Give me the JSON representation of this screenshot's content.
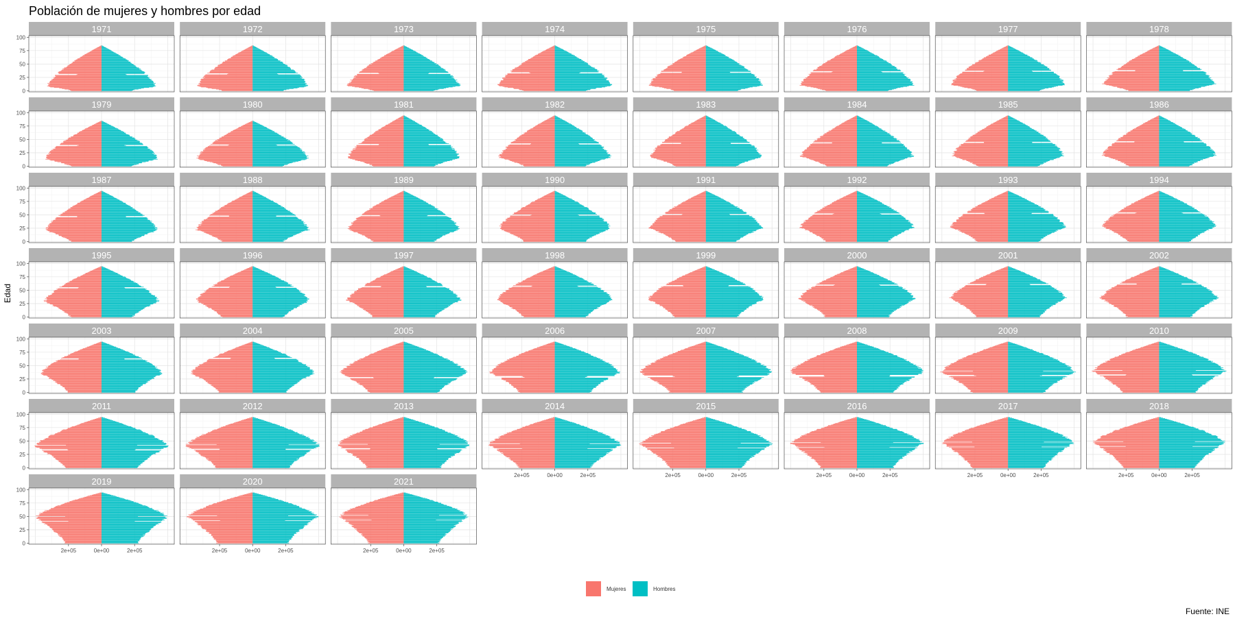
{
  "chart_data": {
    "type": "bar",
    "subtype": "population-pyramid-faceted",
    "title": "Población de mujeres y hombres por edad",
    "ylabel": "Edad",
    "xlabel": "",
    "caption": "Fuente: INE",
    "y_ticks": [
      0,
      25,
      50,
      75,
      100
    ],
    "x_ticks": [
      {
        "value": -200000,
        "label": "2e+05"
      },
      {
        "value": 0,
        "label": "0e+00"
      },
      {
        "value": 200000,
        "label": "2e+05"
      }
    ],
    "xlim": [
      -440000,
      440000
    ],
    "ylim": [
      -2,
      103
    ],
    "grid": true,
    "legend": {
      "position": "bottom",
      "entries": [
        {
          "name": "Mujeres",
          "color": "#F8766D"
        },
        {
          "name": "Hombres",
          "color": "#00BFC4"
        }
      ]
    },
    "strip_color": "#b3b3b3",
    "panels": [
      {
        "year": "1971",
        "max_age": 85,
        "peak_m": 330000,
        "peak_age": 8,
        "gaps": [
          30,
          31
        ]
      },
      {
        "year": "1972",
        "max_age": 85,
        "peak_m": 335000,
        "peak_age": 8,
        "gaps": [
          31,
          32
        ]
      },
      {
        "year": "1973",
        "max_age": 85,
        "peak_m": 340000,
        "peak_age": 9,
        "gaps": [
          32,
          33
        ]
      },
      {
        "year": "1974",
        "max_age": 85,
        "peak_m": 345000,
        "peak_age": 9,
        "gaps": [
          33,
          34
        ]
      },
      {
        "year": "1975",
        "max_age": 85,
        "peak_m": 345000,
        "peak_age": 10,
        "gaps": [
          34,
          35
        ]
      },
      {
        "year": "1976",
        "max_age": 85,
        "peak_m": 345000,
        "peak_age": 10,
        "gaps": [
          35,
          36
        ]
      },
      {
        "year": "1977",
        "max_age": 85,
        "peak_m": 345000,
        "peak_age": 11,
        "gaps": [
          36,
          37
        ]
      },
      {
        "year": "1978",
        "max_age": 85,
        "peak_m": 340000,
        "peak_age": 12,
        "gaps": [
          37,
          38
        ]
      },
      {
        "year": "1979",
        "max_age": 85,
        "peak_m": 340000,
        "peak_age": 13,
        "gaps": [
          38,
          39
        ]
      },
      {
        "year": "1980",
        "max_age": 85,
        "peak_m": 340000,
        "peak_age": 14,
        "gaps": [
          39,
          40
        ]
      },
      {
        "year": "1981",
        "max_age": 95,
        "peak_m": 340000,
        "peak_age": 15,
        "gaps": [
          40,
          41
        ]
      },
      {
        "year": "1982",
        "max_age": 95,
        "peak_m": 340000,
        "peak_age": 16,
        "gaps": [
          41,
          42
        ]
      },
      {
        "year": "1983",
        "max_age": 95,
        "peak_m": 340000,
        "peak_age": 17,
        "gaps": [
          42,
          43
        ]
      },
      {
        "year": "1984",
        "max_age": 95,
        "peak_m": 340000,
        "peak_age": 18,
        "gaps": [
          43,
          44
        ]
      },
      {
        "year": "1985",
        "max_age": 95,
        "peak_m": 340000,
        "peak_age": 19,
        "gaps": [
          44,
          45
        ]
      },
      {
        "year": "1986",
        "max_age": 95,
        "peak_m": 340000,
        "peak_age": 20,
        "gaps": [
          45,
          46
        ]
      },
      {
        "year": "1987",
        "max_age": 95,
        "peak_m": 340000,
        "peak_age": 21,
        "gaps": [
          46,
          47
        ]
      },
      {
        "year": "1988",
        "max_age": 95,
        "peak_m": 340000,
        "peak_age": 22,
        "gaps": [
          47,
          48
        ]
      },
      {
        "year": "1989",
        "max_age": 95,
        "peak_m": 340000,
        "peak_age": 23,
        "gaps": [
          48,
          49
        ]
      },
      {
        "year": "1990",
        "max_age": 95,
        "peak_m": 340000,
        "peak_age": 24,
        "gaps": [
          49,
          50
        ]
      },
      {
        "year": "1991",
        "max_age": 95,
        "peak_m": 340000,
        "peak_age": 25,
        "gaps": [
          50,
          51
        ]
      },
      {
        "year": "1992",
        "max_age": 95,
        "peak_m": 345000,
        "peak_age": 26,
        "gaps": [
          51,
          52
        ]
      },
      {
        "year": "1993",
        "max_age": 95,
        "peak_m": 345000,
        "peak_age": 27,
        "gaps": [
          52,
          53
        ]
      },
      {
        "year": "1994",
        "max_age": 95,
        "peak_m": 345000,
        "peak_age": 28,
        "gaps": [
          53,
          54
        ]
      },
      {
        "year": "1995",
        "max_age": 95,
        "peak_m": 345000,
        "peak_age": 29,
        "gaps": [
          54,
          55
        ]
      },
      {
        "year": "1996",
        "max_age": 95,
        "peak_m": 345000,
        "peak_age": 30,
        "gaps": [
          55,
          56
        ]
      },
      {
        "year": "1997",
        "max_age": 95,
        "peak_m": 345000,
        "peak_age": 31,
        "gaps": [
          56,
          57
        ]
      },
      {
        "year": "1998",
        "max_age": 95,
        "peak_m": 350000,
        "peak_age": 32,
        "gaps": [
          57,
          58
        ]
      },
      {
        "year": "1999",
        "max_age": 95,
        "peak_m": 350000,
        "peak_age": 33,
        "gaps": [
          58,
          59
        ]
      },
      {
        "year": "2000",
        "max_age": 95,
        "peak_m": 350000,
        "peak_age": 34,
        "gaps": [
          59,
          60
        ]
      },
      {
        "year": "2001",
        "max_age": 95,
        "peak_m": 350000,
        "peak_age": 35,
        "gaps": [
          60,
          61
        ]
      },
      {
        "year": "2002",
        "max_age": 95,
        "peak_m": 355000,
        "peak_age": 35,
        "gaps": [
          61,
          62
        ]
      },
      {
        "year": "2003",
        "max_age": 95,
        "peak_m": 370000,
        "peak_age": 35,
        "gaps": [
          62,
          63
        ]
      },
      {
        "year": "2004",
        "max_age": 95,
        "peak_m": 375000,
        "peak_age": 36,
        "gaps": [
          63,
          64
        ]
      },
      {
        "year": "2005",
        "max_age": 95,
        "peak_m": 385000,
        "peak_age": 36,
        "gaps": [
          27,
          28
        ]
      },
      {
        "year": "2006",
        "max_age": 95,
        "peak_m": 395000,
        "peak_age": 37,
        "gaps": [
          28,
          29,
          30
        ]
      },
      {
        "year": "2007",
        "max_age": 95,
        "peak_m": 400000,
        "peak_age": 37,
        "gaps": [
          29,
          30,
          31
        ]
      },
      {
        "year": "2008",
        "max_age": 95,
        "peak_m": 405000,
        "peak_age": 38,
        "gaps": [
          30,
          31,
          32
        ]
      },
      {
        "year": "2009",
        "max_age": 95,
        "peak_m": 405000,
        "peak_age": 38,
        "gaps": [
          31,
          32,
          40
        ]
      },
      {
        "year": "2010",
        "max_age": 95,
        "peak_m": 405000,
        "peak_age": 39,
        "gaps": [
          32,
          33,
          41
        ]
      },
      {
        "year": "2011",
        "max_age": 95,
        "peak_m": 405000,
        "peak_age": 40,
        "gaps": [
          33,
          34,
          42
        ]
      },
      {
        "year": "2012",
        "max_age": 95,
        "peak_m": 405000,
        "peak_age": 41,
        "gaps": [
          34,
          35,
          43
        ]
      },
      {
        "year": "2013",
        "max_age": 95,
        "peak_m": 405000,
        "peak_age": 42,
        "gaps": [
          35,
          36,
          44
        ]
      },
      {
        "year": "2014",
        "max_age": 95,
        "peak_m": 400000,
        "peak_age": 43,
        "gaps": [
          36,
          45
        ]
      },
      {
        "year": "2015",
        "max_age": 95,
        "peak_m": 400000,
        "peak_age": 44,
        "gaps": [
          37,
          46
        ]
      },
      {
        "year": "2016",
        "max_age": 95,
        "peak_m": 400000,
        "peak_age": 45,
        "gaps": [
          38,
          47
        ]
      },
      {
        "year": "2017",
        "max_age": 95,
        "peak_m": 400000,
        "peak_age": 46,
        "gaps": [
          39,
          48
        ]
      },
      {
        "year": "2018",
        "max_age": 95,
        "peak_m": 400000,
        "peak_age": 47,
        "gaps": [
          40,
          49
        ]
      },
      {
        "year": "2019",
        "max_age": 95,
        "peak_m": 400000,
        "peak_age": 48,
        "gaps": [
          41,
          50
        ]
      },
      {
        "year": "2020",
        "max_age": 95,
        "peak_m": 395000,
        "peak_age": 49,
        "gaps": [
          42,
          51
        ]
      },
      {
        "year": "2021",
        "max_age": 95,
        "peak_m": 390000,
        "peak_age": 50,
        "gaps": [
          43,
          52
        ]
      }
    ]
  }
}
